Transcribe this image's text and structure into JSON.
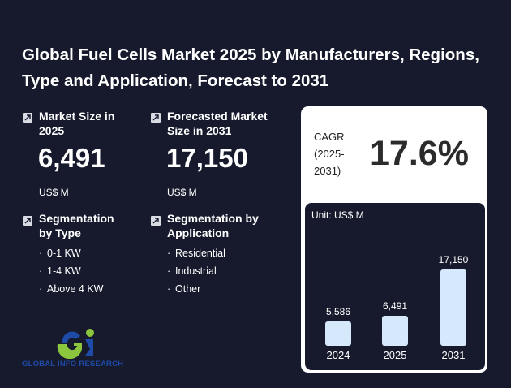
{
  "header": {
    "title": "Global Fuel Cells Market 2025 by Manufacturers, Regions, Type and Application, Forecast to 2031"
  },
  "stats": {
    "market_size": {
      "icon": "arrow-up-right-icon",
      "label": "Market Size in 2025",
      "value": "6,491",
      "unit": "US$ M"
    },
    "forecast_size": {
      "icon": "arrow-up-right-icon",
      "label": "Forecasted Market Size in 2031",
      "value": "17,150",
      "unit": "US$ M"
    }
  },
  "segments": {
    "type": {
      "label": "Segmentation by Type",
      "items": [
        "0-1 KW",
        "1-4 KW",
        "Above 4 KW"
      ]
    },
    "application": {
      "label": "Segmentation by Application",
      "items": [
        "Residential",
        "Industrial",
        "Other"
      ]
    }
  },
  "cagr": {
    "label": "CAGR (2025-2031)",
    "value": "17.6%"
  },
  "logo": {
    "text": "GLOBAL INFO RESEARCH"
  },
  "colors": {
    "background": "#161a2c",
    "bar": "#d6e8fb",
    "logo_blue": "#1e4aa8",
    "logo_green": "#8cc63f"
  },
  "chart_data": {
    "type": "bar",
    "title": "",
    "unit_label": "Unit: US$ M",
    "categories": [
      "2024",
      "2025",
      "2031"
    ],
    "values": [
      5586,
      6491,
      17150
    ],
    "value_labels": [
      "5,586",
      "6,491",
      "17,150"
    ],
    "xlabel": "",
    "ylabel": ""
  }
}
